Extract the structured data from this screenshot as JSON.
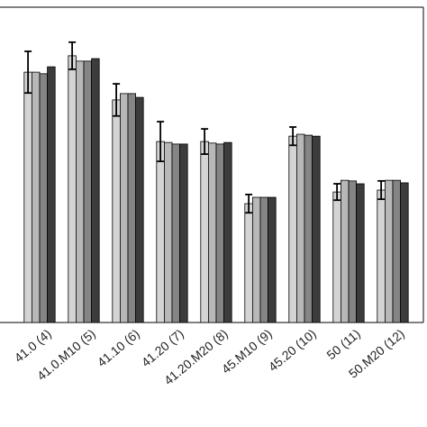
{
  "chart_data": {
    "type": "bar",
    "categories": [
      "41.0 (4)",
      "41.0.M10 (5)",
      "41.10 (6)",
      "41.20 (7)",
      "41.20.M20 (8)",
      "45.M10 (9)",
      "45.20 (10)",
      "50 (11)",
      "50.M20 (12)"
    ],
    "ylim": [
      0,
      100
    ],
    "series": [
      {
        "color": "#d4d4d4",
        "values": [
          79.4,
          84.6,
          70.6,
          57.4,
          57.4,
          37.7,
          59.1,
          41.4,
          42.0
        ],
        "errors": [
          6.6,
          4.3,
          5.1,
          6.3,
          4.0,
          2.9,
          2.9,
          2.6,
          2.9
        ]
      },
      {
        "color": "#b8b8b8",
        "values": [
          79.4,
          82.9,
          72.6,
          57.1,
          56.9,
          39.7,
          59.7,
          45.1,
          45.1
        ]
      },
      {
        "color": "#858585",
        "values": [
          78.9,
          82.9,
          72.6,
          56.6,
          56.6,
          39.7,
          59.4,
          44.9,
          45.1
        ]
      },
      {
        "color": "#3c3c3c",
        "values": [
          81.1,
          83.7,
          71.4,
          56.6,
          57.1,
          39.7,
          59.1,
          44.0,
          44.3
        ]
      }
    ]
  }
}
